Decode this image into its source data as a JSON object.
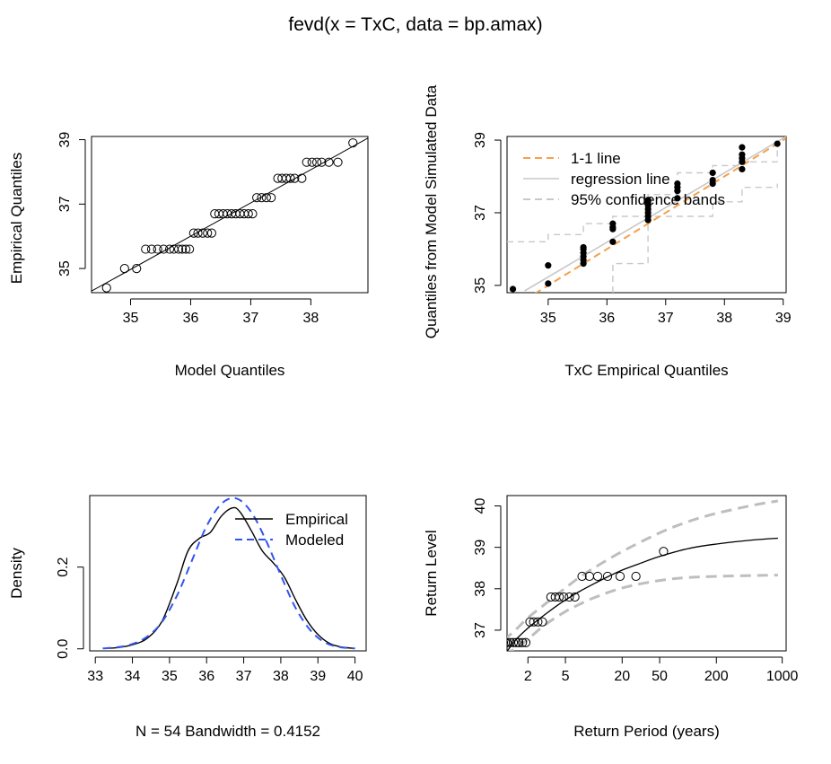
{
  "figure": {
    "title": "fevd(x = TxC, data = bp.amax)"
  },
  "chart_data": [
    {
      "type": "scatter",
      "name": "qq-plot",
      "xlabel": "Model Quantiles",
      "ylabel": "Empirical Quantiles",
      "xlim": [
        34.35,
        38.95
      ],
      "ylim": [
        34.25,
        39.1
      ],
      "xticks": [
        35,
        36,
        37,
        38
      ],
      "yticks": [
        35,
        37,
        39
      ],
      "points": [
        [
          34.6,
          34.4
        ],
        [
          34.9,
          35.0
        ],
        [
          35.1,
          35.0
        ],
        [
          35.25,
          35.6
        ],
        [
          35.35,
          35.6
        ],
        [
          35.45,
          35.6
        ],
        [
          35.55,
          35.6
        ],
        [
          35.65,
          35.6
        ],
        [
          35.72,
          35.6
        ],
        [
          35.8,
          35.6
        ],
        [
          35.86,
          35.6
        ],
        [
          35.92,
          35.6
        ],
        [
          35.98,
          35.6
        ],
        [
          36.05,
          36.1
        ],
        [
          36.12,
          36.1
        ],
        [
          36.2,
          36.1
        ],
        [
          36.28,
          36.1
        ],
        [
          36.35,
          36.1
        ],
        [
          36.4,
          36.7
        ],
        [
          36.47,
          36.7
        ],
        [
          36.54,
          36.7
        ],
        [
          36.61,
          36.7
        ],
        [
          36.68,
          36.7
        ],
        [
          36.75,
          36.7
        ],
        [
          36.82,
          36.7
        ],
        [
          36.89,
          36.7
        ],
        [
          36.96,
          36.7
        ],
        [
          37.03,
          36.7
        ],
        [
          37.1,
          37.2
        ],
        [
          37.18,
          37.2
        ],
        [
          37.26,
          37.2
        ],
        [
          37.34,
          37.2
        ],
        [
          37.45,
          37.8
        ],
        [
          37.52,
          37.8
        ],
        [
          37.59,
          37.8
        ],
        [
          37.66,
          37.8
        ],
        [
          37.73,
          37.8
        ],
        [
          37.85,
          37.8
        ],
        [
          37.93,
          38.3
        ],
        [
          38.02,
          38.3
        ],
        [
          38.1,
          38.3
        ],
        [
          38.18,
          38.3
        ],
        [
          38.3,
          38.3
        ],
        [
          38.45,
          38.3
        ],
        [
          38.7,
          38.9
        ]
      ],
      "line": [
        [
          34.35,
          34.3
        ],
        [
          38.95,
          39.05
        ]
      ]
    },
    {
      "type": "scatter",
      "name": "simulated-quantiles",
      "xlabel": "TxC Empirical Quantiles",
      "ylabel": "Quantiles from Model Simulated Data",
      "xlim": [
        34.3,
        39.05
      ],
      "ylim": [
        34.8,
        39.1
      ],
      "xticks": [
        35,
        36,
        37,
        38,
        39
      ],
      "yticks": [
        35,
        37,
        39
      ],
      "legend": [
        {
          "label": "1-1 line",
          "style": "dash",
          "color": "#F5A04A"
        },
        {
          "label": "regression line",
          "style": "solid",
          "color": "#C8C8C8"
        },
        {
          "label": "95% confidence bands",
          "style": "dash",
          "color": "#C8C8C8"
        }
      ],
      "legend_position": "top-left",
      "points": [
        [
          34.4,
          34.9
        ],
        [
          35.0,
          35.05
        ],
        [
          35.0,
          35.55
        ],
        [
          35.6,
          35.6
        ],
        [
          35.6,
          35.7
        ],
        [
          35.6,
          35.8
        ],
        [
          35.6,
          35.9
        ],
        [
          35.6,
          36.0
        ],
        [
          35.6,
          36.05
        ],
        [
          36.1,
          36.2
        ],
        [
          36.1,
          36.55
        ],
        [
          36.1,
          36.6
        ],
        [
          36.1,
          36.7
        ],
        [
          36.7,
          36.8
        ],
        [
          36.7,
          36.9
        ],
        [
          36.7,
          37.0
        ],
        [
          36.7,
          37.1
        ],
        [
          36.7,
          37.2
        ],
        [
          36.7,
          37.3
        ],
        [
          36.7,
          37.35
        ],
        [
          37.2,
          37.4
        ],
        [
          37.2,
          37.6
        ],
        [
          37.2,
          37.7
        ],
        [
          37.2,
          37.8
        ],
        [
          37.8,
          37.8
        ],
        [
          37.8,
          37.9
        ],
        [
          37.8,
          38.1
        ],
        [
          38.3,
          38.2
        ],
        [
          38.3,
          38.4
        ],
        [
          38.3,
          38.5
        ],
        [
          38.3,
          38.6
        ],
        [
          38.3,
          38.8
        ],
        [
          38.9,
          38.9
        ]
      ],
      "one_to_one": [
        [
          34.6,
          34.6
        ],
        [
          39.05,
          39.05
        ]
      ],
      "regression": [
        [
          34.6,
          34.85
        ],
        [
          39.05,
          39.1
        ]
      ],
      "band_upper": [
        [
          34.3,
          36.2
        ],
        [
          35.0,
          36.4
        ],
        [
          35.6,
          36.7
        ],
        [
          36.1,
          36.9
        ],
        [
          36.7,
          37.5
        ],
        [
          37.2,
          38.1
        ],
        [
          37.8,
          38.3
        ],
        [
          38.3,
          38.4
        ],
        [
          38.9,
          38.9
        ]
      ],
      "band_lower": [
        [
          36.1,
          34.8
        ],
        [
          36.1,
          35.6
        ],
        [
          36.7,
          35.6
        ],
        [
          36.7,
          36.9
        ],
        [
          37.2,
          36.9
        ],
        [
          37.8,
          37.3
        ],
        [
          38.3,
          37.7
        ],
        [
          38.9,
          37.8
        ]
      ]
    },
    {
      "type": "line",
      "name": "density",
      "xlabel": "N = 54   Bandwidth = 0.4152",
      "ylabel": "Density",
      "xlim": [
        32.85,
        40.3
      ],
      "ylim": [
        -0.005,
        0.375
      ],
      "xticks": [
        33,
        34,
        35,
        36,
        37,
        38,
        39,
        40
      ],
      "yticks": [
        0.0,
        0.2
      ],
      "yticklabels": [
        "0.0",
        "0.2"
      ],
      "legend": [
        {
          "label": "Empirical",
          "style": "solid",
          "color": "#000000"
        },
        {
          "label": "Modeled",
          "style": "dash",
          "color": "#3355EE"
        }
      ],
      "legend_position": "top-right",
      "series": [
        {
          "name": "Empirical",
          "x": [
            33.2,
            33.6,
            34.0,
            34.4,
            34.8,
            35.2,
            35.5,
            35.8,
            36.1,
            36.4,
            36.7,
            36.9,
            37.2,
            37.5,
            37.8,
            38.1,
            38.4,
            38.7,
            39.0,
            39.3,
            39.6,
            40.0
          ],
          "y": [
            0.001,
            0.003,
            0.01,
            0.026,
            0.068,
            0.16,
            0.24,
            0.27,
            0.285,
            0.325,
            0.345,
            0.335,
            0.29,
            0.24,
            0.21,
            0.175,
            0.12,
            0.07,
            0.035,
            0.014,
            0.005,
            0.001
          ]
        },
        {
          "name": "Modeled",
          "x": [
            33.2,
            33.6,
            34.0,
            34.4,
            34.8,
            35.2,
            35.6,
            36.0,
            36.4,
            36.8,
            37.2,
            37.6,
            38.0,
            38.4,
            38.8,
            39.2,
            39.6,
            40.0
          ],
          "y": [
            0.001,
            0.004,
            0.012,
            0.03,
            0.066,
            0.13,
            0.215,
            0.3,
            0.355,
            0.368,
            0.335,
            0.265,
            0.18,
            0.1,
            0.045,
            0.015,
            0.004,
            0.001
          ]
        }
      ]
    },
    {
      "type": "line",
      "name": "return-level",
      "xlabel": "Return Period (years)",
      "ylabel": "Return Level",
      "xscale": "log",
      "xlim": [
        1.2,
        1100
      ],
      "ylim": [
        36.5,
        40.25
      ],
      "xticks": [
        2,
        5,
        20,
        50,
        200,
        1000
      ],
      "yticks": [
        37,
        38,
        39,
        40
      ],
      "points": [
        [
          1.02,
          36.7
        ],
        [
          1.05,
          36.7
        ],
        [
          1.1,
          36.7
        ],
        [
          1.15,
          36.7
        ],
        [
          1.2,
          36.7
        ],
        [
          1.3,
          36.7
        ],
        [
          1.4,
          36.7
        ],
        [
          1.5,
          36.7
        ],
        [
          1.6,
          36.7
        ],
        [
          1.75,
          36.7
        ],
        [
          1.9,
          36.7
        ],
        [
          2.1,
          37.2
        ],
        [
          2.3,
          37.2
        ],
        [
          2.55,
          37.2
        ],
        [
          2.85,
          37.2
        ],
        [
          3.5,
          37.8
        ],
        [
          3.9,
          37.8
        ],
        [
          4.3,
          37.8
        ],
        [
          4.8,
          37.8
        ],
        [
          5.5,
          37.8
        ],
        [
          6.3,
          37.8
        ],
        [
          7.5,
          38.3
        ],
        [
          9.0,
          38.3
        ],
        [
          11.0,
          38.3
        ],
        [
          14.0,
          38.3
        ],
        [
          19.0,
          38.3
        ],
        [
          28.0,
          38.3
        ],
        [
          55.0,
          38.9
        ]
      ],
      "series": [
        {
          "name": "estimate",
          "x": [
            1.1,
            1.3,
            1.5,
            2.0,
            2.5,
            3.0,
            4.0,
            5.0,
            7.0,
            10.0,
            15.0,
            20.0,
            30.0,
            50.0,
            100.0,
            200.0,
            500.0,
            900.0
          ],
          "y": [
            36.35,
            36.6,
            36.78,
            37.05,
            37.23,
            37.37,
            37.58,
            37.73,
            37.93,
            38.12,
            38.32,
            38.45,
            38.6,
            38.78,
            38.97,
            39.08,
            39.18,
            39.22
          ]
        },
        {
          "name": "upper",
          "x": [
            1.1,
            1.5,
            2.0,
            3.0,
            5.0,
            7.0,
            10.0,
            20.0,
            50.0,
            100.0,
            200.0,
            500.0,
            900.0
          ],
          "y": [
            36.75,
            37.02,
            37.3,
            37.62,
            38.02,
            38.27,
            38.5,
            38.9,
            39.35,
            39.62,
            39.82,
            40.02,
            40.12
          ]
        },
        {
          "name": "lower",
          "x": [
            1.1,
            1.5,
            2.0,
            3.0,
            5.0,
            7.0,
            10.0,
            20.0,
            50.0,
            100.0,
            200.0,
            500.0,
            900.0
          ],
          "y": [
            36.45,
            36.55,
            36.78,
            37.12,
            37.45,
            37.62,
            37.78,
            38.02,
            38.2,
            38.27,
            38.3,
            38.32,
            38.33
          ]
        }
      ]
    }
  ]
}
